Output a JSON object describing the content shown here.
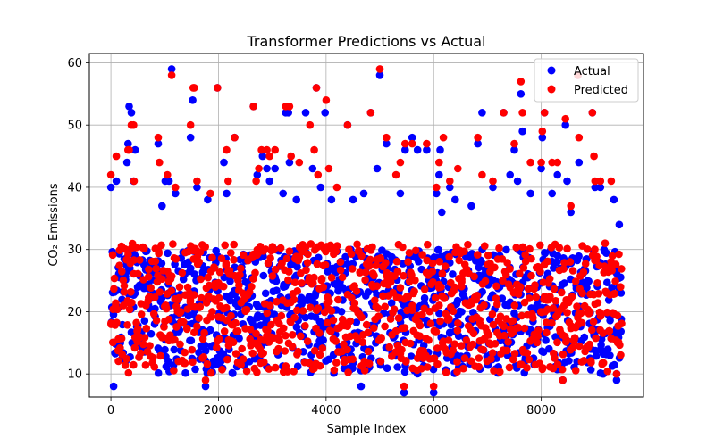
{
  "chart_data": {
    "type": "scatter",
    "title": "Transformer Predictions vs Actual",
    "xlabel": "Sample Index",
    "ylabel": "CO₂ Emissions",
    "xlim": [
      -400,
      9900
    ],
    "ylim": [
      6.3,
      61.5
    ],
    "xticks": [
      0,
      2000,
      4000,
      6000,
      8000
    ],
    "yticks": [
      10,
      20,
      30,
      40,
      50,
      60
    ],
    "grid": true,
    "legend_position": "top-right",
    "n_samples": 9500,
    "series": [
      {
        "name": "Actual",
        "color": "#0000ff",
        "dense_band": [
          10,
          30
        ],
        "outliers": [
          [
            0,
            40
          ],
          [
            50,
            8
          ],
          [
            100,
            41
          ],
          [
            300,
            44
          ],
          [
            320,
            47
          ],
          [
            340,
            53
          ],
          [
            380,
            52
          ],
          [
            420,
            41
          ],
          [
            450,
            46
          ],
          [
            880,
            47
          ],
          [
            950,
            37
          ],
          [
            1010,
            41
          ],
          [
            1080,
            41
          ],
          [
            1130,
            59
          ],
          [
            1200,
            39
          ],
          [
            1480,
            48
          ],
          [
            1520,
            54
          ],
          [
            1600,
            40
          ],
          [
            1760,
            8
          ],
          [
            1800,
            38
          ],
          [
            1980,
            56
          ],
          [
            2100,
            44
          ],
          [
            2150,
            39
          ],
          [
            2300,
            48
          ],
          [
            2650,
            53
          ],
          [
            2720,
            42
          ],
          [
            2820,
            45
          ],
          [
            2900,
            43
          ],
          [
            2950,
            41
          ],
          [
            3050,
            43
          ],
          [
            3200,
            39
          ],
          [
            3250,
            52
          ],
          [
            3300,
            52
          ],
          [
            3320,
            44
          ],
          [
            3450,
            38
          ],
          [
            3620,
            52
          ],
          [
            3750,
            43
          ],
          [
            3820,
            56
          ],
          [
            3900,
            40
          ],
          [
            3980,
            52
          ],
          [
            4100,
            38
          ],
          [
            4400,
            50
          ],
          [
            4500,
            38
          ],
          [
            4650,
            8
          ],
          [
            4700,
            39
          ],
          [
            4830,
            52
          ],
          [
            4950,
            43
          ],
          [
            5000,
            58
          ],
          [
            5120,
            47
          ],
          [
            5380,
            39
          ],
          [
            5450,
            7
          ],
          [
            5470,
            46
          ],
          [
            5600,
            48
          ],
          [
            5700,
            46
          ],
          [
            5870,
            46
          ],
          [
            6000,
            7
          ],
          [
            6050,
            39
          ],
          [
            6100,
            42
          ],
          [
            6120,
            46
          ],
          [
            6150,
            36
          ],
          [
            6300,
            40
          ],
          [
            6400,
            38
          ],
          [
            6700,
            37
          ],
          [
            6820,
            47
          ],
          [
            6900,
            52
          ],
          [
            7100,
            40
          ],
          [
            7300,
            52
          ],
          [
            7420,
            42
          ],
          [
            7500,
            46
          ],
          [
            7560,
            41
          ],
          [
            7620,
            55
          ],
          [
            7650,
            49
          ],
          [
            7800,
            39
          ],
          [
            8000,
            43
          ],
          [
            8020,
            48
          ],
          [
            8060,
            52
          ],
          [
            8200,
            39
          ],
          [
            8300,
            42
          ],
          [
            8400,
            9
          ],
          [
            8450,
            50
          ],
          [
            8480,
            41
          ],
          [
            8550,
            36
          ],
          [
            8680,
            58
          ],
          [
            8700,
            44
          ],
          [
            8950,
            52
          ],
          [
            9000,
            40
          ],
          [
            9100,
            40
          ],
          [
            9150,
            10
          ],
          [
            9350,
            38
          ],
          [
            9400,
            9
          ],
          [
            9450,
            34
          ]
        ]
      },
      {
        "name": "Predicted",
        "color": "#ff0000",
        "dense_band": [
          10,
          31
        ],
        "outliers": [
          [
            0,
            42
          ],
          [
            100,
            45
          ],
          [
            320,
            46
          ],
          [
            340,
            46
          ],
          [
            380,
            50
          ],
          [
            420,
            50
          ],
          [
            430,
            41
          ],
          [
            880,
            48
          ],
          [
            900,
            44
          ],
          [
            1050,
            42
          ],
          [
            1130,
            58
          ],
          [
            1200,
            40
          ],
          [
            1480,
            50
          ],
          [
            1530,
            56
          ],
          [
            1550,
            56
          ],
          [
            1600,
            41
          ],
          [
            1760,
            9
          ],
          [
            1850,
            39
          ],
          [
            1980,
            56
          ],
          [
            2150,
            46
          ],
          [
            2180,
            41
          ],
          [
            2300,
            48
          ],
          [
            2650,
            53
          ],
          [
            2700,
            41
          ],
          [
            2750,
            43
          ],
          [
            2800,
            46
          ],
          [
            2900,
            46
          ],
          [
            2950,
            45
          ],
          [
            3050,
            46
          ],
          [
            3250,
            53
          ],
          [
            3320,
            53
          ],
          [
            3350,
            45
          ],
          [
            3500,
            44
          ],
          [
            3700,
            50
          ],
          [
            3780,
            46
          ],
          [
            3820,
            56
          ],
          [
            3850,
            42
          ],
          [
            4000,
            54
          ],
          [
            4050,
            43
          ],
          [
            4200,
            40
          ],
          [
            4400,
            50
          ],
          [
            4830,
            52
          ],
          [
            5000,
            59
          ],
          [
            5120,
            48
          ],
          [
            5300,
            42
          ],
          [
            5380,
            44
          ],
          [
            5450,
            8
          ],
          [
            5470,
            47
          ],
          [
            5600,
            47
          ],
          [
            5870,
            47
          ],
          [
            6000,
            8
          ],
          [
            6050,
            40
          ],
          [
            6100,
            44
          ],
          [
            6180,
            48
          ],
          [
            6300,
            41
          ],
          [
            6450,
            43
          ],
          [
            6820,
            48
          ],
          [
            6900,
            42
          ],
          [
            7100,
            41
          ],
          [
            7300,
            52
          ],
          [
            7500,
            47
          ],
          [
            7620,
            57
          ],
          [
            7650,
            52
          ],
          [
            7800,
            44
          ],
          [
            8000,
            44
          ],
          [
            8020,
            49
          ],
          [
            8060,
            52
          ],
          [
            8200,
            44
          ],
          [
            8300,
            44
          ],
          [
            8400,
            9
          ],
          [
            8450,
            51
          ],
          [
            8550,
            37
          ],
          [
            8680,
            58
          ],
          [
            8700,
            48
          ],
          [
            8950,
            52
          ],
          [
            8980,
            45
          ],
          [
            9000,
            41
          ],
          [
            9100,
            41
          ],
          [
            9300,
            41
          ],
          [
            9400,
            10
          ]
        ]
      }
    ]
  }
}
